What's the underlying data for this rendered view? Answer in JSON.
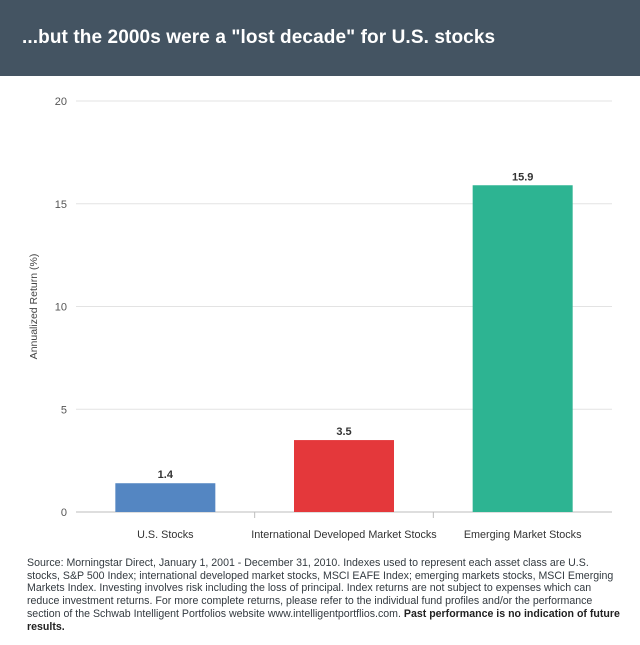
{
  "header": {
    "title": "...but the 2000s were a \"lost decade\" for U.S. stocks"
  },
  "chart_data": {
    "type": "bar",
    "title": "...but the 2000s were a \"lost decade\" for U.S. stocks",
    "xlabel": "",
    "ylabel": "Annualized Return (%)",
    "ylim": [
      0,
      20
    ],
    "yticks": [
      0,
      5,
      10,
      15,
      20
    ],
    "grid": true,
    "categories": [
      "U.S. Stocks",
      "International Developed Market Stocks",
      "Emerging Market Stocks"
    ],
    "values": [
      1.4,
      3.5,
      15.9
    ],
    "value_labels": [
      "1.4",
      "3.5",
      "15.9"
    ],
    "colors": [
      "#5486c2",
      "#e4383b",
      "#2db492"
    ]
  },
  "footer": {
    "source_text": "Source: Morningstar Direct, January 1, 2001 - December 31, 2010. Indexes used to represent each asset class are U.S. stocks, S&P 500 Index; international developed market stocks, MSCI EAFE Index; emerging markets stocks, MSCI Emerging Markets Index. Investing involves risk including the loss of principal. Index returns are not subject to expenses which can reduce investment returns. For more complete returns, please refer to the individual fund profiles and/or the performance section of the Schwab Intelligent Portfolios website www.intelligentportflios.com.",
    "disclaimer_bold": "Past performance is no indication of future results."
  }
}
